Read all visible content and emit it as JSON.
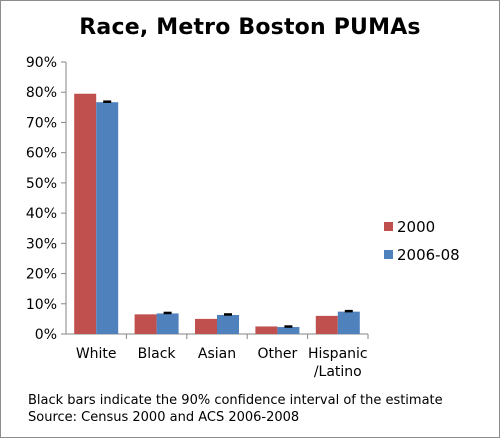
{
  "chart_data": {
    "type": "bar",
    "title": "Race, Metro Boston PUMAs",
    "categories": [
      "White",
      "Black",
      "Asian",
      "Other",
      "Hispanic\n/Latino"
    ],
    "series": [
      {
        "name": "2000",
        "values": [
          79.5,
          6.5,
          5.0,
          2.5,
          6.0
        ],
        "color": "#c0504d"
      },
      {
        "name": "2006-08",
        "values": [
          76.7,
          6.8,
          6.3,
          2.3,
          7.4
        ],
        "color": "#4f81bd"
      }
    ],
    "error_bars": {
      "series": "2006-08",
      "color": "#000000"
    },
    "ylim": [
      0,
      90
    ],
    "yticks": [
      "0%",
      "10%",
      "20%",
      "30%",
      "40%",
      "50%",
      "60%",
      "70%",
      "80%",
      "90%"
    ],
    "grid": false,
    "legend": "right"
  },
  "notes": {
    "line1": "Black bars indicate the 90% confidence interval of the estimate",
    "line2": "Source: Census 2000 and ACS 2006-2008"
  }
}
